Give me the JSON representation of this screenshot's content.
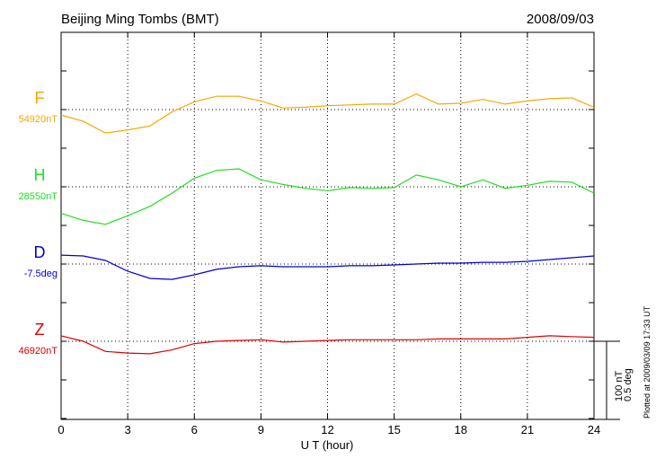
{
  "chart_data": {
    "type": "line",
    "title": "Beijing Ming Tombs (BMT)",
    "date": "2008/09/03",
    "x_label": "U T (hour)",
    "footer": "Plotted at 2009/03/09 17:33 UT",
    "x": [
      0,
      1,
      2,
      3,
      4,
      5,
      6,
      7,
      8,
      9,
      10,
      11,
      12,
      13,
      14,
      15,
      16,
      17,
      18,
      19,
      20,
      21,
      22,
      23,
      24
    ],
    "xlim": [
      0,
      24
    ],
    "xticks": [
      0,
      3,
      6,
      9,
      12,
      15,
      18,
      21,
      24
    ],
    "grid": true,
    "scale": [
      {
        "value": 100,
        "label": "100 nT"
      },
      {
        "value": 0.5,
        "label": "0.5 deg"
      }
    ],
    "series": [
      {
        "name": "F",
        "baseline": "54920nT",
        "color": "#f5a700",
        "values": [
          -7,
          -15,
          -30,
          -26,
          -21,
          -3,
          10,
          17,
          17,
          11,
          2,
          3,
          5,
          6,
          7,
          7,
          20,
          7,
          8,
          13,
          7,
          11,
          14,
          15,
          3
        ]
      },
      {
        "name": "H",
        "baseline": "28550nT",
        "color": "#22dd22",
        "values": [
          -34,
          -43,
          -48,
          -37,
          -25,
          -8,
          11,
          21,
          23,
          9,
          3,
          -2,
          -5,
          -1,
          -2,
          -1,
          15,
          9,
          0,
          9,
          -2,
          2,
          7,
          6,
          -8
        ]
      },
      {
        "name": "D",
        "baseline": "-7.5deg",
        "color": "#0000cc",
        "axis": "y2",
        "values": [
          0.057,
          0.052,
          0.023,
          -0.046,
          -0.092,
          -0.098,
          -0.069,
          -0.034,
          -0.017,
          -0.011,
          -0.017,
          -0.017,
          -0.017,
          -0.011,
          -0.011,
          -0.006,
          0,
          0.006,
          0.006,
          0.011,
          0.011,
          0.017,
          0.029,
          0.04,
          0.052
        ]
      },
      {
        "name": "Z",
        "baseline": "46920nT",
        "color": "#dd0000",
        "values": [
          7,
          0,
          -13,
          -15,
          -16,
          -11,
          -3,
          0,
          1,
          2,
          -1,
          0,
          1,
          2,
          2,
          2,
          2,
          3,
          3,
          3,
          3,
          5,
          7,
          6,
          5
        ]
      }
    ]
  }
}
